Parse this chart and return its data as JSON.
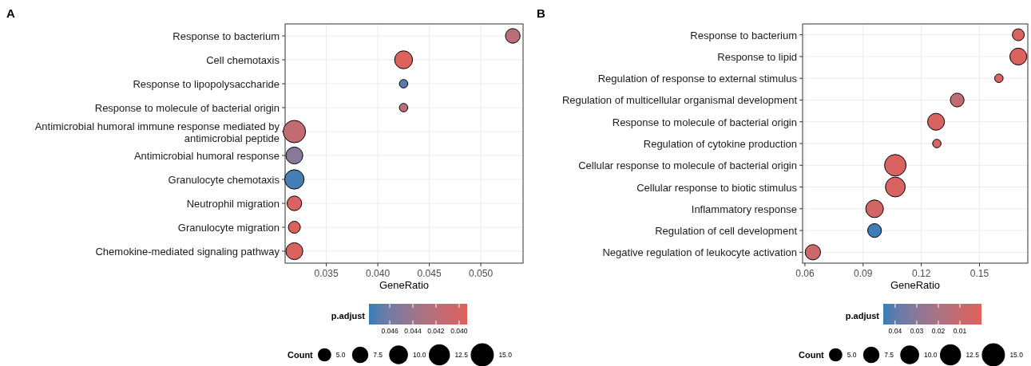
{
  "chart_data": [
    {
      "type": "bubble",
      "title": "A",
      "orientation": "horizontal",
      "xlabel": "GeneRatio",
      "clabel": "p.adjust",
      "legend_title": "Count",
      "grid": true,
      "categories": [
        "Response to bacterium",
        "Cell chemotaxis",
        "Response to lipopolysaccharide",
        "Response to molecule of bacterial origin",
        "Antimicrobial humoral immune response mediated by antimicrobial peptide",
        "Antimicrobial humoral response",
        "Granulocyte chemotaxis",
        "Neutrophil migration",
        "Granulocyte migration",
        "Chemokine-mediated signaling pathway"
      ],
      "values": [
        0.0531,
        0.0425,
        0.0425,
        0.0425,
        0.0319,
        0.0319,
        0.0319,
        0.0319,
        0.0319,
        0.0319
      ],
      "sizes": [
        6,
        9,
        2,
        2,
        14,
        8,
        10.5,
        6,
        4,
        8
      ],
      "cvalues": [
        0.042,
        0.0396,
        0.047,
        0.042,
        0.0415,
        0.045,
        0.0475,
        0.0398,
        0.0396,
        0.0396
      ],
      "xlim": [
        0.031,
        0.0541
      ],
      "xticks": [
        0.035,
        {
          "value": 0.04,
          "label": "0.040"
        },
        0.045,
        {
          "value": 0.05,
          "label": "0.050"
        }
      ],
      "clim": [
        0.0478,
        0.0393
      ],
      "cticks": [
        0.046,
        0.044,
        0.042,
        {
          "value": 0.04,
          "label": "0.040"
        }
      ],
      "size_legend": [
        {
          "value": 5,
          "label": "5.0"
        },
        7.5,
        {
          "value": 10,
          "label": "10.0"
        },
        12.5,
        {
          "value": 15,
          "label": "15.0"
        }
      ]
    },
    {
      "type": "bubble",
      "title": "B",
      "orientation": "horizontal",
      "xlabel": "GeneRatio",
      "clabel": "p.adjust",
      "legend_title": "Count",
      "grid": true,
      "categories": [
        "Response to bacterium",
        "Response to lipid",
        "Regulation of response to external stimulus",
        "Regulation of multicellular organismal development",
        "Response to molecule of bacterial origin",
        "Regulation of cytokine production",
        "Cellular response to molecule of bacterial origin",
        "Cellular response to biotic stimulus",
        "Inflammatory response",
        "Regulation of cell development",
        "Negative regulation of leukocyte activation"
      ],
      "values": [
        0.17,
        0.17,
        0.16,
        0.1385,
        0.1276,
        0.128,
        0.1066,
        0.1066,
        0.0959,
        0.0959,
        0.0641
      ],
      "sizes": [
        4,
        8,
        2,
        5.3,
        8,
        2,
        13,
        11,
        8.7,
        5.3,
        6.6
      ],
      "cvalues": [
        0.003,
        0.002,
        0.003,
        0.012,
        0.003,
        0.003,
        0.003,
        0.003,
        0.005,
        0.045,
        0.008
      ],
      "xlim": [
        0.0588,
        0.1749
      ],
      "xticks": [
        {
          "value": 0.06,
          "label": "0.06"
        },
        {
          "value": 0.09,
          "label": "0.09"
        },
        {
          "value": 0.12,
          "label": "0.12"
        },
        {
          "value": 0.15,
          "label": "0.15"
        }
      ],
      "clim": [
        0.0455,
        0.0
      ],
      "cticks": [
        0.04,
        0.03,
        0.02,
        0.01
      ],
      "size_legend": [
        {
          "value": 5,
          "label": "5.0"
        },
        7.5,
        {
          "value": 10,
          "label": "10.0"
        },
        12.5,
        {
          "value": 15,
          "label": "15.0"
        }
      ]
    }
  ]
}
